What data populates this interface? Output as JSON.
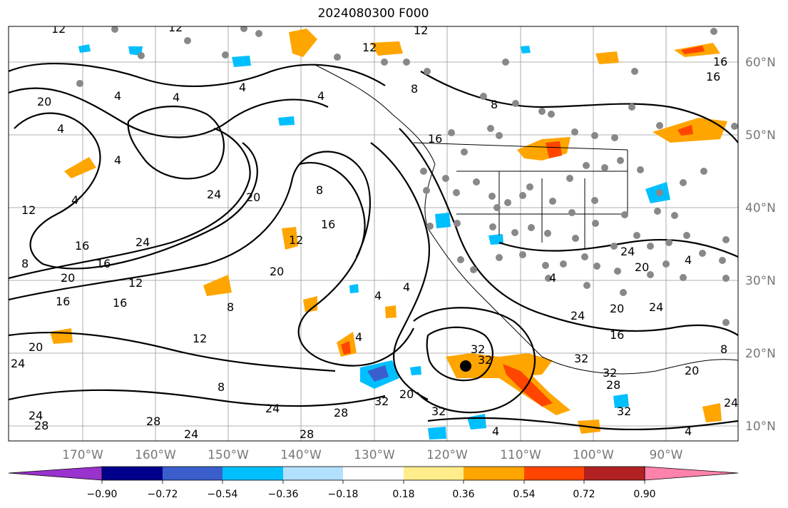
{
  "title": "2024080300 F000",
  "lat_labels": [
    "60°N",
    "50°N",
    "40°N",
    "30°N",
    "20°N",
    "10°N"
  ],
  "lon_labels": [
    "170°W",
    "160°W",
    "150°W",
    "140°W",
    "130°W",
    "120°W",
    "110°W",
    "100°W",
    "90°W"
  ],
  "colorbar": {
    "ticks": [
      "−0.90",
      "−0.72",
      "−0.54",
      "−0.36",
      "−0.18",
      "0.18",
      "0.36",
      "0.54",
      "0.72",
      "0.90"
    ],
    "colors": [
      "#9a32cd",
      "#00008b",
      "#3a5fcd",
      "#00bfff",
      "#b2e0ff",
      "#ffffff",
      "#ffec8b",
      "#ffa500",
      "#ff4500",
      "#b22222",
      "#ff82ab"
    ]
  },
  "contour_labels": [
    "4",
    "8",
    "12",
    "16",
    "20",
    "24",
    "28",
    "32"
  ],
  "colors": {
    "positive_weak": "#ffa500",
    "positive_strong": "#ff4500",
    "negative_weak": "#00bfff",
    "negative_strong": "#3a5fcd",
    "station_dots": "#888888"
  }
}
